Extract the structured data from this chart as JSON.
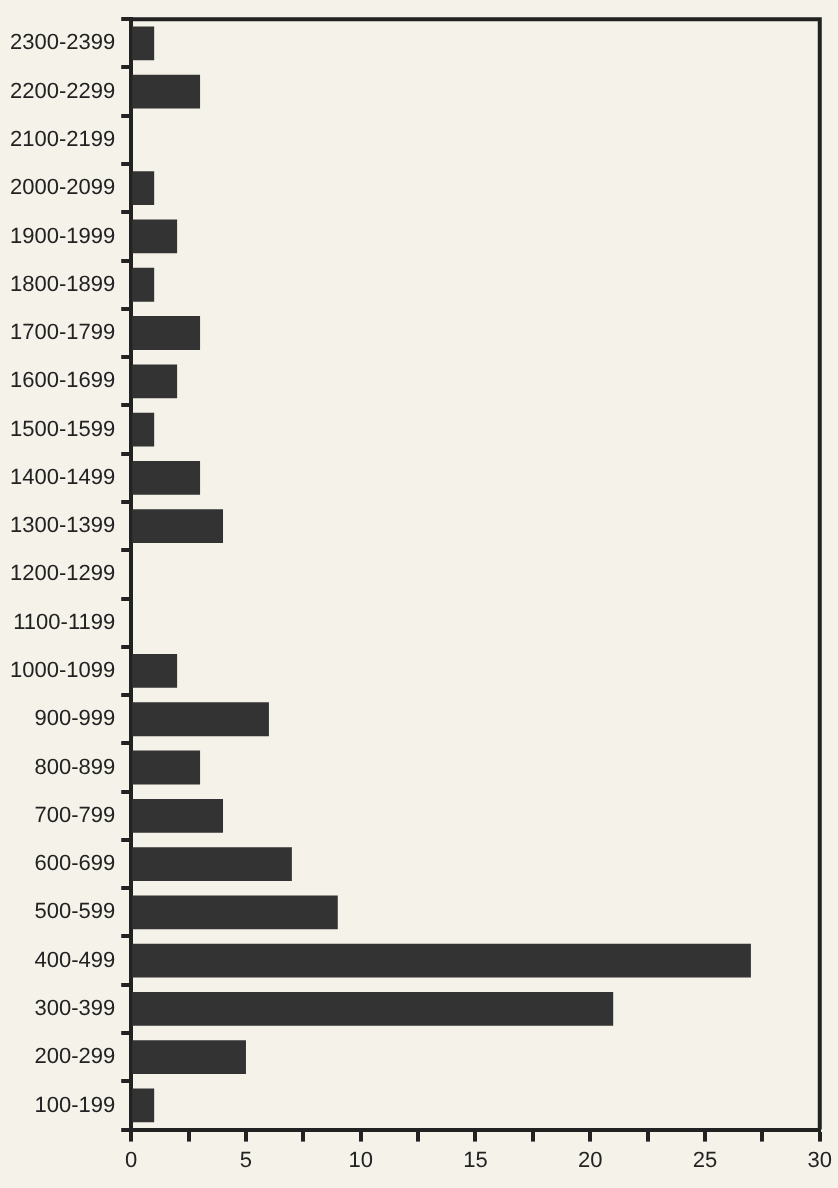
{
  "chart_data": {
    "type": "bar",
    "orientation": "horizontal",
    "categories": [
      "2300-2399",
      "2200-2299",
      "2100-2199",
      "2000-2099",
      "1900-1999",
      "1800-1899",
      "1700-1799",
      "1600-1699",
      "1500-1599",
      "1400-1499",
      "1300-1399",
      "1200-1299",
      "1100-1199",
      "1000-1099",
      "900-999",
      "800-899",
      "700-799",
      "600-699",
      "500-599",
      "400-499",
      "300-399",
      "200-299",
      "100-199"
    ],
    "values": [
      1,
      3,
      0,
      1,
      2,
      1,
      3,
      2,
      1,
      3,
      4,
      0,
      0,
      2,
      6,
      3,
      4,
      7,
      9,
      27,
      21,
      5,
      1
    ],
    "color": "#333333",
    "xlim": [
      0,
      30
    ],
    "xticks": [
      0,
      {
        "value": 2.5,
        "label": null
      },
      5,
      {
        "value": 7.5,
        "label": null
      },
      10,
      {
        "value": 12.5,
        "label": null
      },
      15,
      {
        "value": 17.5,
        "label": null
      },
      20,
      {
        "value": 22.5,
        "label": null
      },
      25,
      {
        "value": 27.5,
        "label": null
      },
      30
    ],
    "grid": false,
    "legend": false
  }
}
